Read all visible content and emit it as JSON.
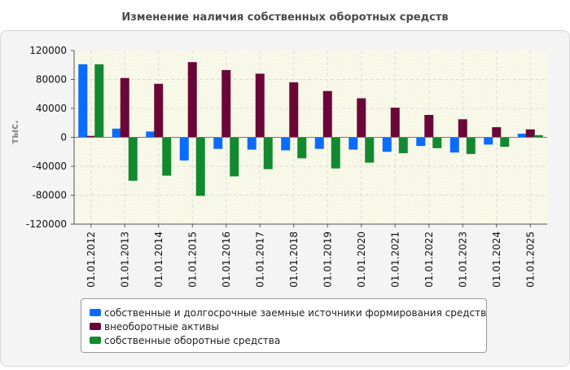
{
  "chart_data": {
    "type": "bar",
    "title": "Изменение наличия собственных оборотных средств",
    "ylabel": "тыс.",
    "xlabel": "",
    "ylim": [
      -120000,
      120000
    ],
    "yticks": [
      120000,
      80000,
      40000,
      0,
      -40000,
      -80000,
      -120000
    ],
    "categories": [
      "01.01.2012",
      "01.01.2013",
      "01.01.2014",
      "01.01.2015",
      "01.01.2016",
      "01.01.2017",
      "01.01.2018",
      "01.01.2019",
      "01.01.2020",
      "01.01.2021",
      "01.01.2022",
      "01.01.2023",
      "01.01.2024",
      "01.01.2025"
    ],
    "series": [
      {
        "name": "собственные и долгосрочные заемные источники формирования средств",
        "color": "#0a6cff",
        "values": [
          101000,
          12000,
          8000,
          -32000,
          -16000,
          -17000,
          -18000,
          -16000,
          -17000,
          -20000,
          -12000,
          -21000,
          -10000,
          5000
        ]
      },
      {
        "name": "внеоборотные активы",
        "color": "#6b0738",
        "values": [
          2000,
          82000,
          74000,
          104000,
          93000,
          88000,
          76000,
          64000,
          54000,
          41000,
          31000,
          25000,
          14000,
          11000
        ]
      },
      {
        "name": "собственные оборотные средства",
        "color": "#13892f",
        "values": [
          101000,
          -60000,
          -53000,
          -81000,
          -54000,
          -44000,
          -29000,
          -43000,
          -35000,
          -22000,
          -15000,
          -23000,
          -13000,
          3000
        ]
      }
    ],
    "legend_position": "bottom",
    "grid": true
  }
}
